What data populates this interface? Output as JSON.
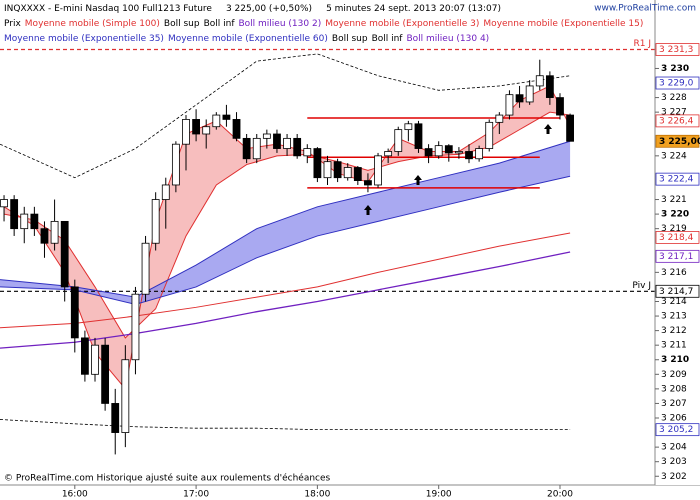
{
  "chart_data": {
    "type": "candlestick",
    "header": [
      "INQXXXX - E-mini Nasdaq 100 Full1213 Future",
      "3 225,00 (+0,50%)",
      "5 minutes  24 sept. 2013 20:07 (13:07)"
    ],
    "site": "www.ProRealTime.com",
    "footer": "© ProRealTime.com Historique ajusté suite aux roulements d'échéances",
    "legend": [
      [
        {
          "text": "Prix",
          "color": "#000000"
        },
        {
          "text": "Moyenne mobile (Simple 100)",
          "color": "#e03030"
        },
        {
          "text": "Boll sup",
          "color": "#000000"
        },
        {
          "text": "Boll inf",
          "color": "#000000"
        },
        {
          "text": "Boll milieu (130 2)",
          "color": "#7020c0"
        },
        {
          "text": "Moyenne mobile (Exponentielle 3)",
          "color": "#e03030"
        },
        {
          "text": "Moyenne mobile (Exponentielle 15)",
          "color": "#e03030"
        }
      ],
      [
        {
          "text": "Moyenne mobile (Exponentielle 35)",
          "color": "#3030c0"
        },
        {
          "text": "Moyenne mobile (Exponentielle 60)",
          "color": "#3030c0"
        },
        {
          "text": "Boll sup",
          "color": "#000000"
        },
        {
          "text": "Boll inf",
          "color": "#000000"
        },
        {
          "text": "Boll milieu (130 4)",
          "color": "#7020c0"
        }
      ]
    ],
    "xlim": [
      "15:23",
      "20:47"
    ],
    "xticks": [
      "16:00",
      "17:00",
      "18:00",
      "19:00",
      "20:00"
    ],
    "ylim": [
      3201.4,
      3234.7
    ],
    "yticks": [
      {
        "value": 3230,
        "label": "3 230",
        "bold": true
      },
      {
        "value": 3228,
        "label": "3 228"
      },
      {
        "value": 3227,
        "label": "3 227"
      },
      {
        "value": 3224,
        "label": "3 224"
      },
      {
        "value": 3221,
        "label": "3 221"
      },
      {
        "value": 3220,
        "label": "3 220",
        "bold": true
      },
      {
        "value": 3219,
        "label": "3 219"
      },
      {
        "value": 3216,
        "label": "3 216"
      },
      {
        "value": 3214,
        "label": "3 214"
      },
      {
        "value": 3213,
        "label": "3 213"
      },
      {
        "value": 3212,
        "label": "3 212"
      },
      {
        "value": 3211,
        "label": "3 211"
      },
      {
        "value": 3210,
        "label": "3 210",
        "bold": true
      },
      {
        "value": 3209,
        "label": "3 209"
      },
      {
        "value": 3208,
        "label": "3 208"
      },
      {
        "value": 3207,
        "label": "3 207"
      },
      {
        "value": 3206,
        "label": "3 206"
      },
      {
        "value": 3204,
        "label": "3 204"
      },
      {
        "value": 3203,
        "label": "3 203"
      },
      {
        "value": 3202,
        "label": "3 202"
      }
    ],
    "price_labels": [
      {
        "value": 3229.0,
        "label": "3 229,0",
        "color": "#3030c0"
      },
      {
        "value": 3226.4,
        "label": "3 226,4",
        "color": "#e03030"
      },
      {
        "value": 3225.0,
        "label": "3 225,00",
        "color": "#000000",
        "background": "#f0a020"
      },
      {
        "value": 3222.4,
        "label": "3 222,4",
        "color": "#3030c0"
      },
      {
        "value": 3218.4,
        "label": "3 218,4",
        "color": "#e03030"
      },
      {
        "value": 3217.1,
        "label": "3 217,1",
        "color": "#7020c0"
      },
      {
        "value": 3205.2,
        "label": "3 205,2",
        "color": "#3030c0"
      }
    ],
    "levels": [
      {
        "value": 3231.3,
        "label": "R1 J",
        "price_label": "3 231,3",
        "color": "#e03030"
      },
      {
        "value": 3214.7,
        "label": "Piv J",
        "price_label": "3 214,7",
        "color": "#000000"
      }
    ],
    "segments": [
      {
        "value": 3226.6,
        "from": "17:55",
        "to": "20:00",
        "color": "#e00000"
      },
      {
        "value": 3223.9,
        "from": "17:55",
        "to": "19:50",
        "color": "#e00000"
      },
      {
        "value": 3221.8,
        "from": "17:55",
        "to": "19:50",
        "color": "#e00000"
      }
    ],
    "candles": {
      "x": [
        "15:25",
        "15:30",
        "15:35",
        "15:40",
        "15:45",
        "15:50",
        "15:55",
        "16:00",
        "16:05",
        "16:10",
        "16:15",
        "16:20",
        "16:25",
        "16:30",
        "16:35",
        "16:40",
        "16:45",
        "16:50",
        "16:55",
        "17:00",
        "17:05",
        "17:10",
        "17:15",
        "17:20",
        "17:25",
        "17:30",
        "17:35",
        "17:40",
        "17:45",
        "17:50",
        "17:55",
        "18:00",
        "18:05",
        "18:10",
        "18:15",
        "18:20",
        "18:25",
        "18:30",
        "18:35",
        "18:40",
        "18:45",
        "18:50",
        "18:55",
        "19:00",
        "19:05",
        "19:10",
        "19:15",
        "19:20",
        "19:25",
        "19:30",
        "19:35",
        "19:40",
        "19:45",
        "19:50",
        "19:55",
        "20:00",
        "20:05"
      ],
      "open": [
        3220.5,
        3221,
        3219,
        3220,
        3219,
        3218,
        3219.5,
        3215,
        3211.5,
        3209,
        3211,
        3207,
        3205,
        3210,
        3214.5,
        3218,
        3221,
        3222,
        3224.8,
        3226.5,
        3225.5,
        3226,
        3226.8,
        3226.5,
        3225.2,
        3223.8,
        3225.2,
        3225.5,
        3224.5,
        3225.2,
        3224,
        3224.5,
        3222.5,
        3223.6,
        3222.5,
        3223.2,
        3222.3,
        3222,
        3224,
        3224.3,
        3225.8,
        3226.2,
        3224.5,
        3224,
        3224.7,
        3224.2,
        3224.3,
        3223.8,
        3224.5,
        3226.3,
        3226.8,
        3228.2,
        3227.7,
        3228.8,
        3229.5,
        3228,
        3226.8
      ],
      "high": [
        3221.3,
        3221.3,
        3220.5,
        3220.5,
        3219.5,
        3221,
        3219.5,
        3215.5,
        3212,
        3211.5,
        3211.5,
        3208,
        3211,
        3215,
        3218.5,
        3221.5,
        3222.5,
        3225,
        3226.8,
        3227.2,
        3226.5,
        3227,
        3227.5,
        3227,
        3225.5,
        3225.5,
        3225.8,
        3225.8,
        3225.5,
        3225.5,
        3224.8,
        3224.6,
        3224,
        3223.8,
        3223.5,
        3223.3,
        3222.8,
        3224.2,
        3224.5,
        3226,
        3226.4,
        3226.4,
        3224.8,
        3225,
        3224.8,
        3224.6,
        3224.8,
        3224.7,
        3226.5,
        3227,
        3228.5,
        3228.8,
        3229.2,
        3230.6,
        3229.8,
        3228.3,
        3226.9
      ],
      "low": [
        3219.5,
        3218.5,
        3218,
        3218.5,
        3217,
        3217.5,
        3214,
        3210.5,
        3208.5,
        3208.5,
        3206.5,
        3203.5,
        3204,
        3209,
        3214,
        3217.5,
        3219,
        3221.5,
        3223,
        3225,
        3224.5,
        3225.8,
        3226,
        3225,
        3223.5,
        3223.5,
        3224.5,
        3224.2,
        3224,
        3223.8,
        3223.5,
        3222.2,
        3222,
        3222.2,
        3222.3,
        3222,
        3221.5,
        3221.8,
        3223.5,
        3224,
        3225,
        3224.2,
        3223.5,
        3223.8,
        3223.6,
        3223.8,
        3223.5,
        3223.6,
        3224.3,
        3225.5,
        3226.5,
        3227.3,
        3227.5,
        3228.5,
        3227.5,
        3226.5,
        3225
      ],
      "close": [
        3221,
        3219,
        3220,
        3219,
        3218,
        3219.5,
        3215,
        3211.5,
        3209,
        3211,
        3207,
        3205,
        3210,
        3214.5,
        3218,
        3221,
        3222,
        3224.8,
        3226.5,
        3225.5,
        3226,
        3226.8,
        3226.5,
        3225.2,
        3223.8,
        3225.2,
        3225.5,
        3224.5,
        3225.2,
        3224,
        3224.5,
        3222.5,
        3223.6,
        3222.5,
        3223.2,
        3222.3,
        3222,
        3224,
        3224.3,
        3225.8,
        3226.2,
        3224.5,
        3224,
        3224.7,
        3224.2,
        3224.3,
        3223.8,
        3224.5,
        3226.3,
        3226.8,
        3228.2,
        3227.7,
        3228.8,
        3229.5,
        3228,
        3226.8,
        3225
      ]
    },
    "lines": [
      {
        "color": "#e03030",
        "width": 1,
        "x": [
          "15:25",
          "15:40",
          "15:55",
          "16:10",
          "16:25",
          "16:40",
          "16:55",
          "17:10",
          "17:25",
          "17:40",
          "17:55",
          "18:10",
          "18:25",
          "18:40",
          "18:55",
          "19:10",
          "19:25",
          "19:40",
          "19:55",
          "20:05"
        ],
        "values": [
          3220.5,
          3219.2,
          3216,
          3210.5,
          3208,
          3219.5,
          3225.5,
          3226.4,
          3224.5,
          3224.8,
          3224.3,
          3222.8,
          3222.2,
          3225.2,
          3224.3,
          3224.3,
          3225.6,
          3227.8,
          3228.8,
          3226
        ]
      },
      {
        "color": "#e03030",
        "width": 1,
        "x": [
          "15:25",
          "15:40",
          "15:55",
          "16:10",
          "16:25",
          "16:40",
          "16:55",
          "17:10",
          "17:25",
          "17:40",
          "17:55",
          "18:10",
          "18:25",
          "18:40",
          "18:55",
          "19:10",
          "19:25",
          "19:40",
          "19:55",
          "20:05"
        ],
        "values": [
          3220,
          3219.6,
          3218.2,
          3215,
          3211.5,
          3213.5,
          3218.5,
          3222,
          3223.4,
          3224,
          3224.1,
          3223.6,
          3223,
          3223.6,
          3224,
          3224.1,
          3224.6,
          3225.8,
          3227,
          3226.8
        ]
      },
      {
        "color": "#3030c0",
        "width": 1,
        "x": [
          "15:23",
          "16:00",
          "16:30",
          "17:00",
          "17:30",
          "18:00",
          "18:30",
          "19:00",
          "19:30",
          "20:05"
        ],
        "values": [
          3215.5,
          3215,
          3214.3,
          3216.5,
          3219,
          3220.5,
          3221.5,
          3222.5,
          3223.5,
          3225
        ]
      },
      {
        "color": "#3030c0",
        "width": 1,
        "x": [
          "15:23",
          "16:00",
          "16:30",
          "17:00",
          "17:30",
          "18:00",
          "18:30",
          "19:00",
          "19:30",
          "20:05"
        ],
        "values": [
          3215,
          3214.8,
          3213.8,
          3215,
          3217,
          3218.5,
          3219.5,
          3220.5,
          3221.5,
          3222.6
        ]
      },
      {
        "color": "#e03030",
        "width": 1,
        "x": [
          "15:23",
          "16:00",
          "16:30",
          "17:00",
          "17:30",
          "18:00",
          "18:30",
          "19:00",
          "19:30",
          "20:05"
        ],
        "values": [
          3212.2,
          3212.5,
          3213,
          3213.6,
          3214.3,
          3215,
          3216,
          3216.9,
          3217.8,
          3218.7
        ]
      },
      {
        "color": "#7020c0",
        "width": 1.3,
        "x": [
          "15:23",
          "16:00",
          "16:30",
          "17:00",
          "17:30",
          "18:00",
          "18:30",
          "19:00",
          "19:30",
          "20:05"
        ],
        "values": [
          3210.8,
          3211.2,
          3211.8,
          3212.5,
          3213.3,
          3214,
          3214.8,
          3215.6,
          3216.4,
          3217.4
        ]
      },
      {
        "color": "#000000",
        "width": 0.8,
        "dash": true,
        "x": [
          "15:23",
          "16:00",
          "16:30",
          "17:00",
          "17:30",
          "18:00",
          "18:30",
          "19:00",
          "19:30",
          "20:05"
        ],
        "values": [
          3224.8,
          3222.5,
          3224.5,
          3227.5,
          3230.5,
          3231,
          3229.5,
          3228.5,
          3228.8,
          3229.5
        ]
      },
      {
        "color": "#000000",
        "width": 0.8,
        "dash": true,
        "x": [
          "15:23",
          "16:00",
          "16:30",
          "17:00",
          "17:30",
          "18:00",
          "18:30",
          "19:00",
          "19:30",
          "20:05"
        ],
        "values": [
          3205.9,
          3205.6,
          3205.4,
          3205.3,
          3205.3,
          3205.2,
          3205.2,
          3205.2,
          3205.2,
          3205.2
        ]
      }
    ],
    "fills": [
      {
        "between": [
          0,
          1
        ],
        "color": "#f4a8a8"
      },
      {
        "between": [
          2,
          3
        ],
        "color": "#8c8cec"
      }
    ]
  }
}
